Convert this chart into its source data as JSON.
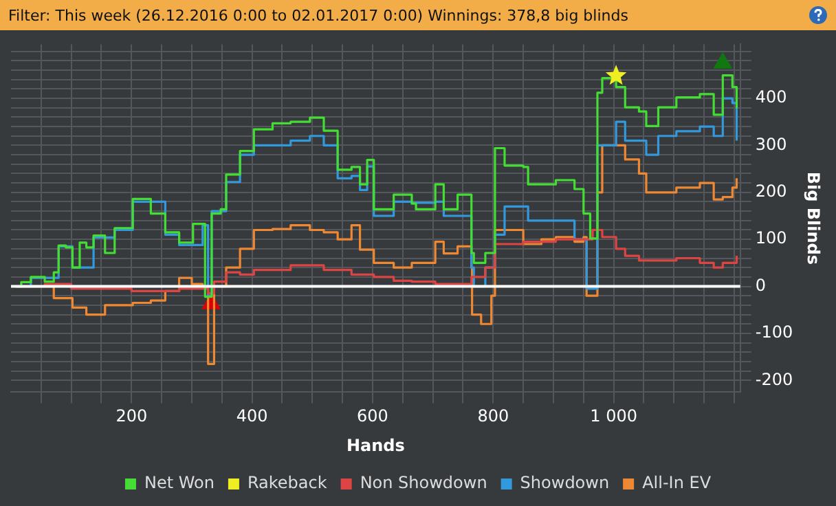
{
  "chart_data": {
    "type": "step",
    "title": "Filter: This week (26.12.2016 0:00 to 02.01.2017 0:00) Winnings: 378,8 big blinds",
    "xlabel": "Hands",
    "ylabel": "Big Blinds",
    "legend": "bottom",
    "grid": true,
    "xlim": [
      0,
      1210
    ],
    "ylim": [
      -225,
      515
    ],
    "xticks": [
      {
        "value": 50,
        "label": null
      },
      {
        "value": 100,
        "label": null
      },
      {
        "value": 150,
        "label": null
      },
      200,
      {
        "value": 250,
        "label": null
      },
      {
        "value": 300,
        "label": null
      },
      {
        "value": 350,
        "label": null
      },
      400,
      {
        "value": 450,
        "label": null
      },
      {
        "value": 500,
        "label": null
      },
      {
        "value": 550,
        "label": null
      },
      600,
      {
        "value": 650,
        "label": null
      },
      {
        "value": 700,
        "label": null
      },
      {
        "value": 750,
        "label": null
      },
      800,
      {
        "value": 850,
        "label": null
      },
      {
        "value": 900,
        "label": null
      },
      {
        "value": 950,
        "label": null
      },
      {
        "value": 1000,
        "label": "1 000"
      },
      {
        "value": 1050,
        "label": null
      },
      {
        "value": 1100,
        "label": null
      },
      {
        "value": 1150,
        "label": null
      },
      {
        "value": 1200,
        "label": null
      }
    ],
    "yticks": [
      -200,
      {
        "value": -180,
        "label": null
      },
      {
        "value": -160,
        "label": null
      },
      {
        "value": -140,
        "label": null
      },
      {
        "value": -120,
        "label": null
      },
      -100,
      {
        "value": -80,
        "label": null
      },
      {
        "value": -60,
        "label": null
      },
      {
        "value": -40,
        "label": null
      },
      {
        "value": -20,
        "label": null
      },
      0,
      {
        "value": 20,
        "label": null
      },
      {
        "value": 40,
        "label": null
      },
      {
        "value": 60,
        "label": null
      },
      {
        "value": 80,
        "label": null
      },
      100,
      {
        "value": 120,
        "label": null
      },
      {
        "value": 140,
        "label": null
      },
      {
        "value": 160,
        "label": null
      },
      {
        "value": 180,
        "label": null
      },
      200,
      {
        "value": 220,
        "label": null
      },
      {
        "value": 240,
        "label": null
      },
      {
        "value": 260,
        "label": null
      },
      {
        "value": 280,
        "label": null
      },
      300,
      {
        "value": 320,
        "label": null
      },
      {
        "value": 340,
        "label": null
      },
      {
        "value": 360,
        "label": null
      },
      {
        "value": 380,
        "label": null
      },
      400,
      {
        "value": 420,
        "label": null
      },
      {
        "value": 440,
        "label": null
      },
      {
        "value": 460,
        "label": null
      },
      {
        "value": 480,
        "label": null
      },
      {
        "value": 500,
        "label": null
      }
    ],
    "ref_lines": [
      {
        "axis": "y",
        "value": 0,
        "color": "#ffffff"
      }
    ],
    "series": [
      {
        "name": "Net Won",
        "color": "#44dd33",
        "x": [
          8,
          17,
          33,
          56,
          71,
          79,
          91,
          102,
          114,
          125,
          137,
          156,
          172,
          202,
          232,
          256,
          279,
          302,
          318,
          322,
          327,
          333,
          348,
          357,
          380,
          403,
          434,
          464,
          496,
          519,
          542,
          565,
          579,
          591,
          602,
          635,
          665,
          672,
          704,
          718,
          741,
          764,
          768,
          787,
          803,
          819,
          850,
          858,
          904,
          935,
          950,
          961,
          973,
          981,
          1004,
          1019,
          1042,
          1054,
          1074,
          1104,
          1143,
          1166,
          1181,
          1197,
          1204
        ],
        "values": [
          0,
          9,
          20,
          10,
          30,
          87,
          83,
          40,
          93,
          83,
          108,
          71,
          124,
          186,
          155,
          115,
          93,
          133,
          133,
          -22,
          -22,
          155,
          164,
          238,
          288,
          334,
          347,
          350,
          359,
          331,
          248,
          254,
          217,
          269,
          164,
          195,
          176,
          164,
          217,
          164,
          195,
          71,
          50,
          71,
          294,
          257,
          254,
          217,
          226,
          207,
          155,
          102,
          412,
          443,
          424,
          381,
          372,
          341,
          381,
          402,
          409,
          365,
          449,
          424,
          379
        ]
      },
      {
        "name": "Rakeback",
        "type": "scatter",
        "marker": "star",
        "color": "#eeee22",
        "x": [
          1004
        ],
        "values": [
          448
        ]
      },
      {
        "name": "Non Showdown",
        "color": "#dd4444",
        "x": [
          8,
          56,
          100,
          200,
          279,
          318,
          327,
          337,
          357,
          380,
          403,
          464,
          519,
          565,
          602,
          635,
          665,
          704,
          741,
          764,
          787,
          803,
          850,
          904,
          950,
          965,
          981,
          1004,
          1019,
          1042,
          1074,
          1104,
          1143,
          1166,
          1181,
          1204
        ],
        "values": [
          0,
          5,
          -5,
          -10,
          -5,
          -5,
          -15,
          10,
          30,
          25,
          35,
          45,
          35,
          25,
          20,
          12,
          10,
          5,
          5,
          20,
          40,
          90,
          95,
          100,
          100,
          120,
          105,
          80,
          65,
          55,
          55,
          60,
          50,
          40,
          50,
          65
        ]
      },
      {
        "name": "Showdown",
        "color": "#3399dd",
        "x": [
          8,
          33,
          79,
          102,
          137,
          172,
          202,
          256,
          279,
          318,
          327,
          333,
          357,
          380,
          403,
          464,
          496,
          519,
          542,
          565,
          579,
          591,
          602,
          635,
          665,
          704,
          718,
          741,
          764,
          768,
          787,
          803,
          819,
          850,
          858,
          904,
          935,
          950,
          955,
          965,
          973,
          1004,
          1019,
          1054,
          1074,
          1104,
          1143,
          1166,
          1181,
          1197,
          1204
        ],
        "values": [
          0,
          18,
          85,
          40,
          104,
          120,
          180,
          110,
          88,
          130,
          -20,
          160,
          222,
          280,
          300,
          310,
          320,
          300,
          230,
          235,
          205,
          255,
          150,
          180,
          178,
          180,
          150,
          150,
          40,
          0,
          40,
          110,
          170,
          170,
          140,
          140,
          100,
          100,
          -5,
          -5,
          300,
          350,
          310,
          280,
          320,
          330,
          340,
          320,
          400,
          390,
          310
        ]
      },
      {
        "name": "All-In EV",
        "color": "#ee8833",
        "x": [
          8,
          56,
          71,
          102,
          125,
          156,
          202,
          232,
          256,
          279,
          300,
          318,
          327,
          333,
          337,
          357,
          380,
          403,
          434,
          464,
          496,
          519,
          542,
          565,
          579,
          602,
          635,
          665,
          704,
          718,
          741,
          764,
          765,
          780,
          787,
          797,
          803,
          850,
          880,
          904,
          935,
          950,
          955,
          968,
          973,
          981,
          1019,
          1042,
          1054,
          1104,
          1143,
          1166,
          1181,
          1197,
          1204
        ],
        "values": [
          0,
          0,
          -25,
          -45,
          -60,
          -40,
          -35,
          -30,
          -10,
          18,
          5,
          0,
          -165,
          -165,
          0,
          40,
          80,
          120,
          122,
          130,
          120,
          115,
          100,
          130,
          78,
          50,
          40,
          50,
          95,
          70,
          85,
          40,
          -60,
          -80,
          -80,
          -20,
          120,
          90,
          100,
          105,
          95,
          105,
          -20,
          -20,
          200,
          300,
          270,
          240,
          200,
          210,
          220,
          185,
          190,
          210,
          230
        ]
      },
      {
        "type": "scatter",
        "marker": "triangle",
        "color": "#dd0000",
        "x": [
          332
        ],
        "values": [
          -37
        ]
      },
      {
        "type": "scatter",
        "marker": "triangle",
        "color": "#117711",
        "x": [
          1181
        ],
        "values": [
          475
        ]
      }
    ]
  }
}
